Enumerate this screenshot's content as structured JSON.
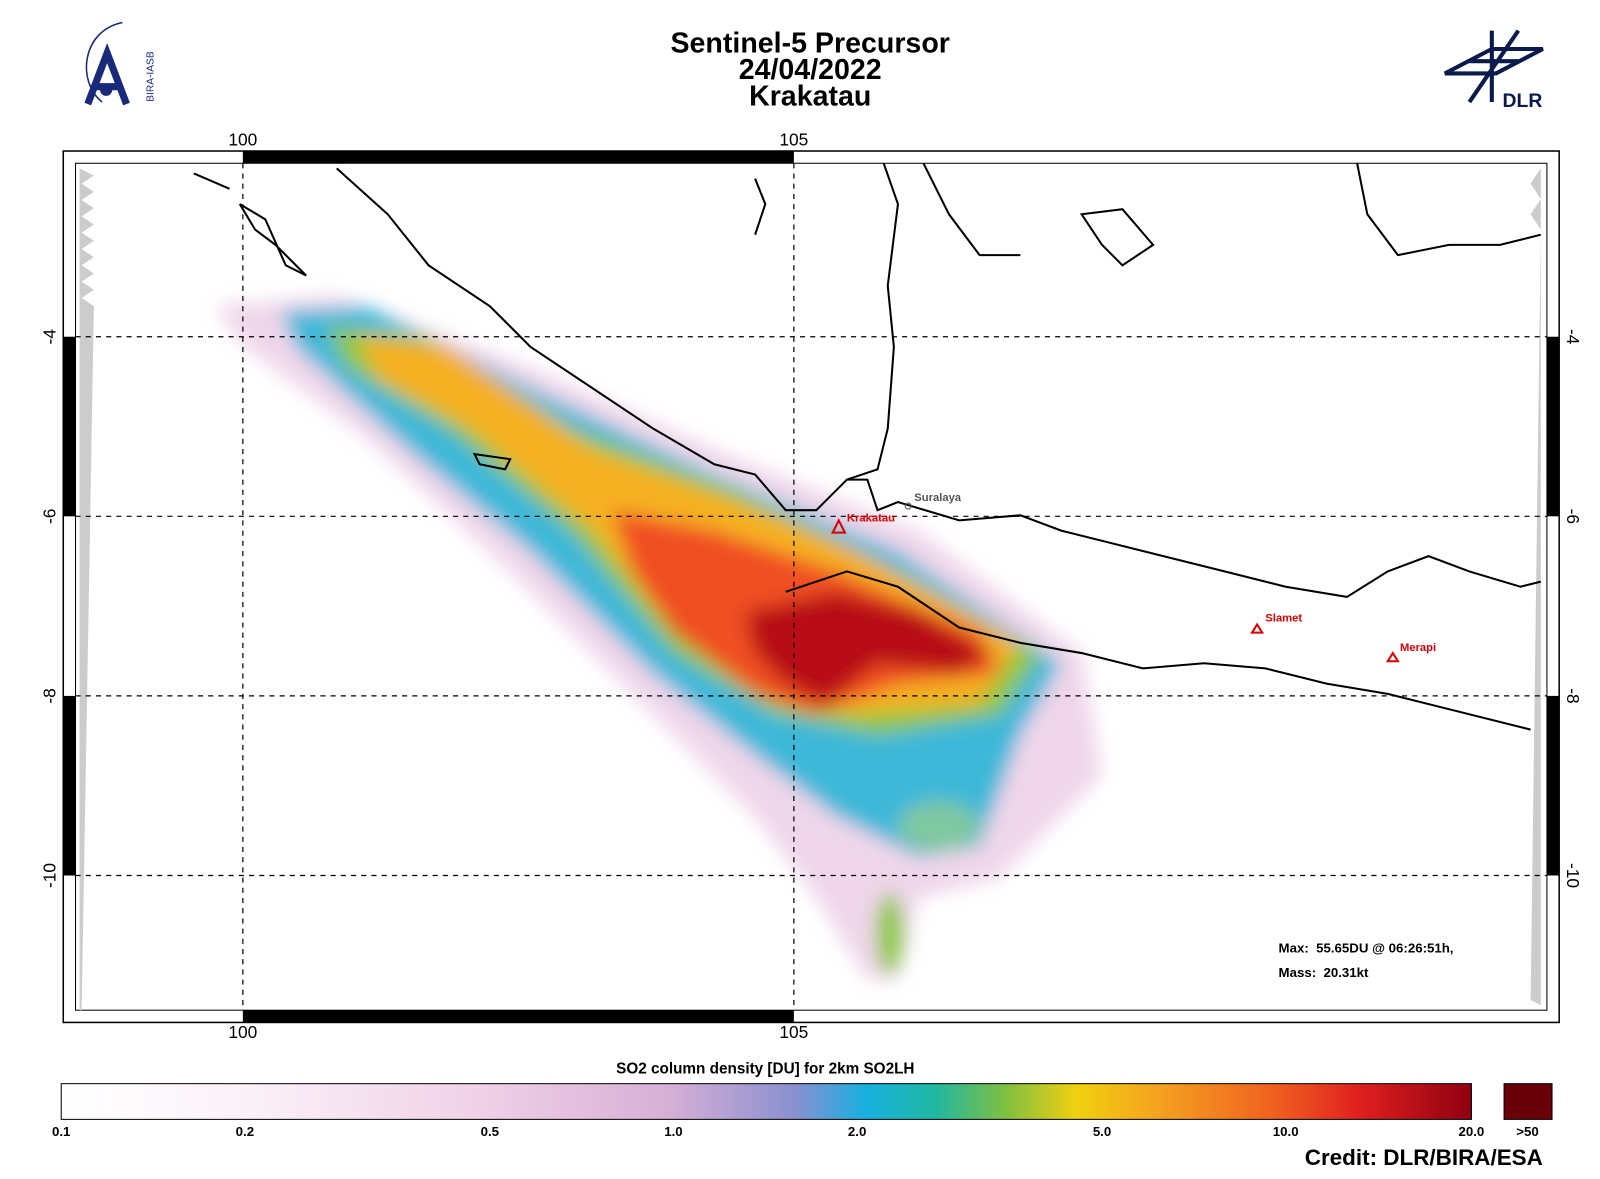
{
  "header": {
    "title": "Sentinel-5 Precursor",
    "date": "24/04/2022",
    "volcano": "Krakatau"
  },
  "logos": {
    "left": "BIRA-IASB",
    "right": "DLR"
  },
  "map": {
    "lon_labels": [
      "100",
      "105"
    ],
    "lat_labels": [
      "-4",
      "-6",
      "-8",
      "-10"
    ],
    "places": [
      {
        "name": "Krakatau"
      },
      {
        "name": "Suralaya"
      },
      {
        "name": "Slamet"
      },
      {
        "name": "Merapi"
      }
    ],
    "stats": {
      "max": "Max:  55.65DU @ 06:26:51h,",
      "mass": "Mass:  20.31kt"
    }
  },
  "colorbar": {
    "title": "SO2 column density [DU] for 2km SO2LH",
    "labels": [
      "0.1",
      "0.2",
      "0.5",
      "1.0",
      "2.0",
      "5.0",
      "10.0",
      "20.0"
    ],
    "overflow": ">50"
  },
  "credit": "Credit: DLR/BIRA/ESA"
}
